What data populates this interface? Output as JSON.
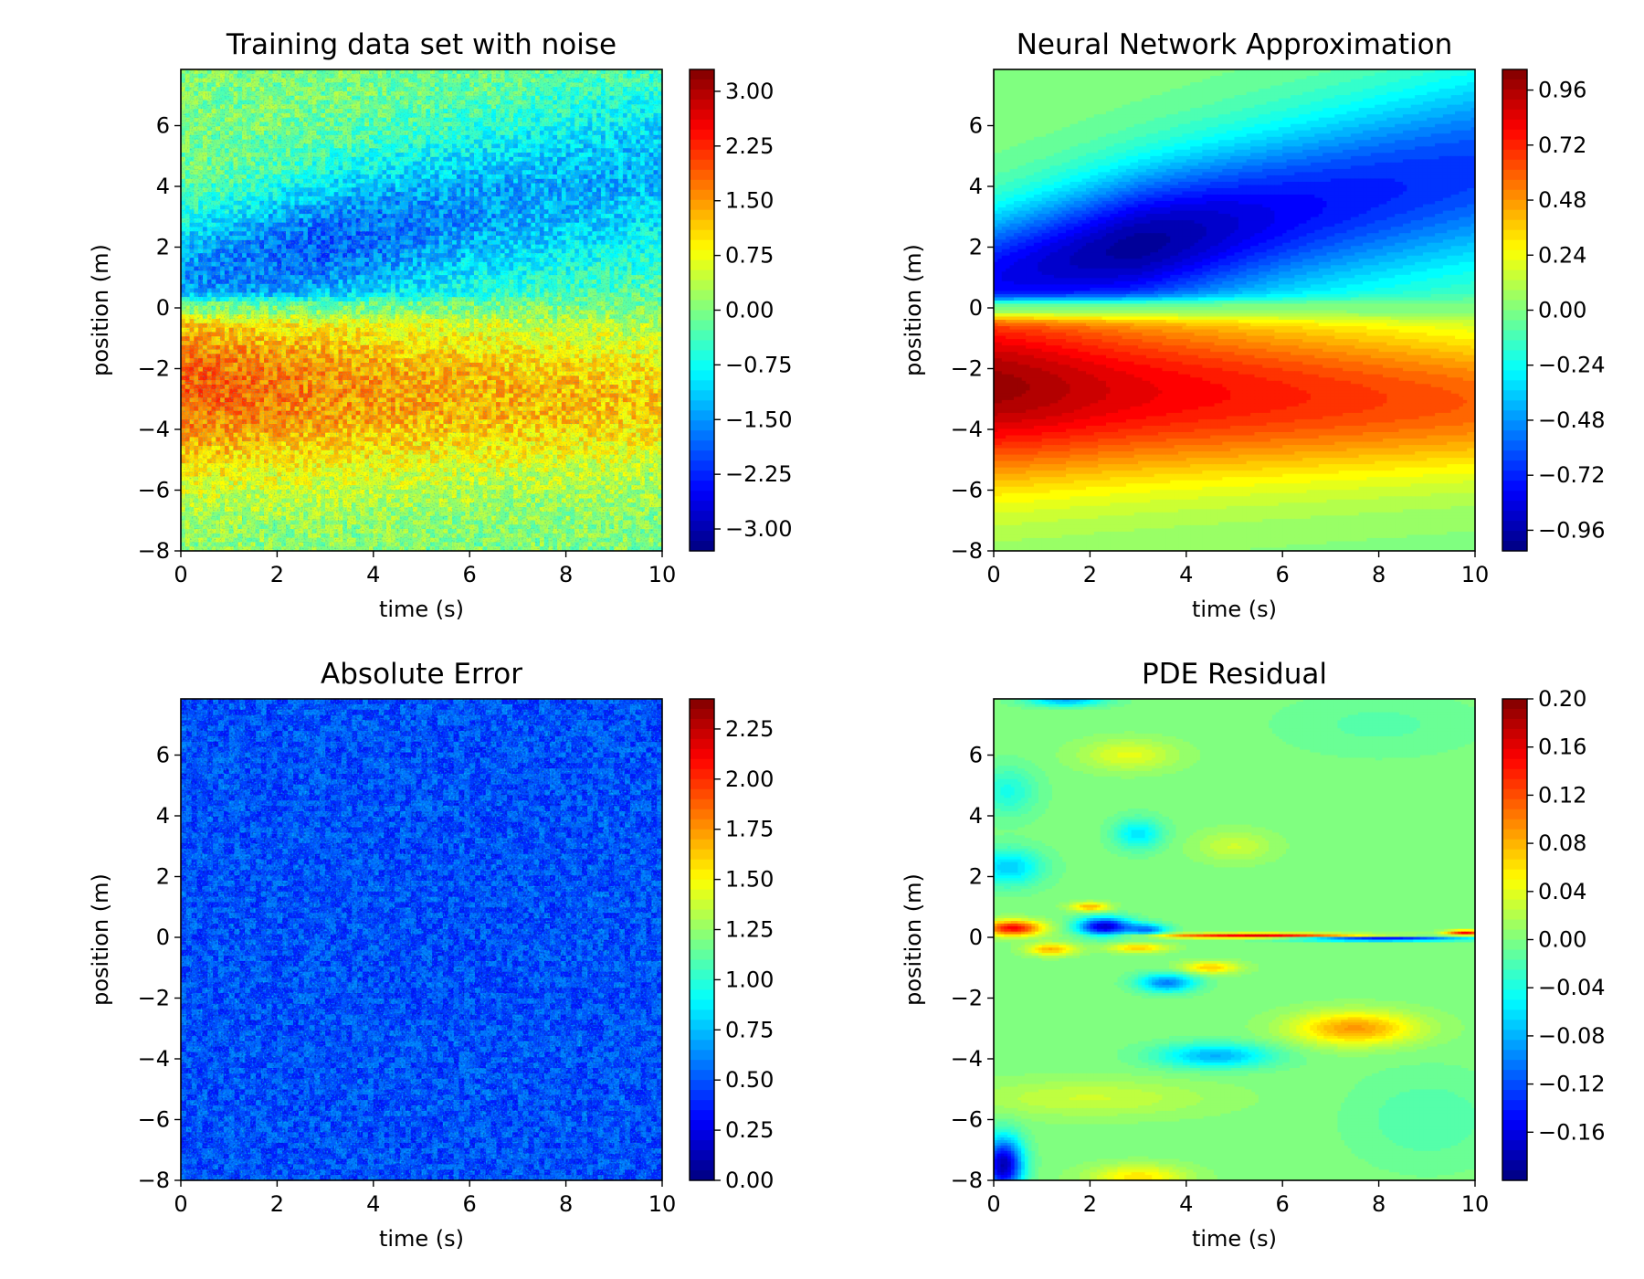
{
  "chart_data": [
    {
      "type": "heatmap",
      "title": "Training data set with noise",
      "xlabel": "time (s)",
      "ylabel": "position (m)",
      "xlim": [
        0,
        10
      ],
      "ylim": [
        -8,
        7.85
      ],
      "xticks": [
        0,
        2,
        4,
        6,
        8,
        10
      ],
      "yticks": [
        -8,
        -6,
        -4,
        -2,
        0,
        2,
        4,
        6
      ],
      "colorbar": {
        "range": [
          -3.3,
          3.3
        ],
        "ticks": [
          3.0,
          2.25,
          1.5,
          0.75,
          0.0,
          -0.75,
          -1.5,
          -2.25,
          -3.0
        ],
        "tick_labels": [
          "3.00",
          "2.25",
          "1.50",
          "0.75",
          "0.00",
          "−0.75",
          "−1.50",
          "−2.25",
          "−3.00"
        ]
      },
      "colormap": "jet",
      "field": "u(t, x) ≈ sign-change at x = 0, max ≈ 1 near (1, −3), min ≈ −1 near (3, 1), plus Gaussian noise σ ≈ 0.5"
    },
    {
      "type": "heatmap",
      "title": "Neural Network Approximation",
      "xlabel": "time (s)",
      "ylabel": "position (m)",
      "xlim": [
        0,
        10
      ],
      "ylim": [
        -8,
        7.85
      ],
      "xticks": [
        0,
        2,
        4,
        6,
        8,
        10
      ],
      "yticks": [
        -8,
        -6,
        -4,
        -2,
        0,
        2,
        4,
        6
      ],
      "colorbar": {
        "range": [
          -1.05,
          1.05
        ],
        "ticks": [
          0.96,
          0.72,
          0.48,
          0.24,
          0.0,
          -0.24,
          -0.48,
          -0.72,
          -0.96
        ],
        "tick_labels": [
          "0.96",
          "0.72",
          "0.48",
          "0.24",
          "0.00",
          "−0.24",
          "−0.48",
          "−0.72",
          "−0.96"
        ]
      },
      "colormap": "jet",
      "field": "smooth u(t, x): red lobe below x = 0 (peak ≈ 1.0 at t ≈ 0.5, x ≈ −2.5), blue lobe above x = 0 (trough ≈ −1.0 at t ≈ 3, x ≈ 1)"
    },
    {
      "type": "heatmap",
      "title": "Absolute Error",
      "xlabel": "time (s)",
      "ylabel": "position (m)",
      "xlim": [
        0,
        10
      ],
      "ylim": [
        -8,
        7.85
      ],
      "xticks": [
        0,
        2,
        4,
        6,
        8,
        10
      ],
      "yticks": [
        -8,
        -6,
        -4,
        -2,
        0,
        2,
        4,
        6
      ],
      "colorbar": {
        "range": [
          0,
          2.4
        ],
        "ticks": [
          2.25,
          2.0,
          1.75,
          1.5,
          1.25,
          1.0,
          0.75,
          0.5,
          0.25,
          0.0
        ],
        "tick_labels": [
          "2.25",
          "2.00",
          "1.75",
          "1.50",
          "1.25",
          "1.00",
          "0.75",
          "0.50",
          "0.25",
          "0.00"
        ]
      },
      "colormap": "jet",
      "field": "uniform noise magnitude, mostly 0.2–0.9, sparse peaks up to ≈ 1.6"
    },
    {
      "type": "heatmap",
      "title": "PDE Residual",
      "xlabel": "time (s)",
      "ylabel": "position (m)",
      "xlim": [
        0,
        10
      ],
      "ylim": [
        -8,
        7.85
      ],
      "xticks": [
        0,
        2,
        4,
        6,
        8,
        10
      ],
      "yticks": [
        -8,
        -6,
        -4,
        -2,
        0,
        2,
        4,
        6
      ],
      "colorbar": {
        "range": [
          -0.2,
          0.2
        ],
        "ticks": [
          0.2,
          0.16,
          0.12,
          0.08,
          0.04,
          0.0,
          -0.04,
          -0.08,
          -0.12,
          -0.16
        ],
        "tick_labels": [
          "0.20",
          "0.16",
          "0.12",
          "0.08",
          "0.04",
          "0.00",
          "−0.04",
          "−0.08",
          "−0.12",
          "−0.16"
        ]
      },
      "colormap": "jet",
      "field": "residual near 0 with features: +0.15 at (0.5, 0.3), −0.17 at (2.2, 0.3), thin ±0.17 streaks along x ≈ 0 for t > 3, +0.08 at (7.5, −3), −0.09 at (4.5, −4), −0.18 at (0.3, −7.5)"
    }
  ]
}
